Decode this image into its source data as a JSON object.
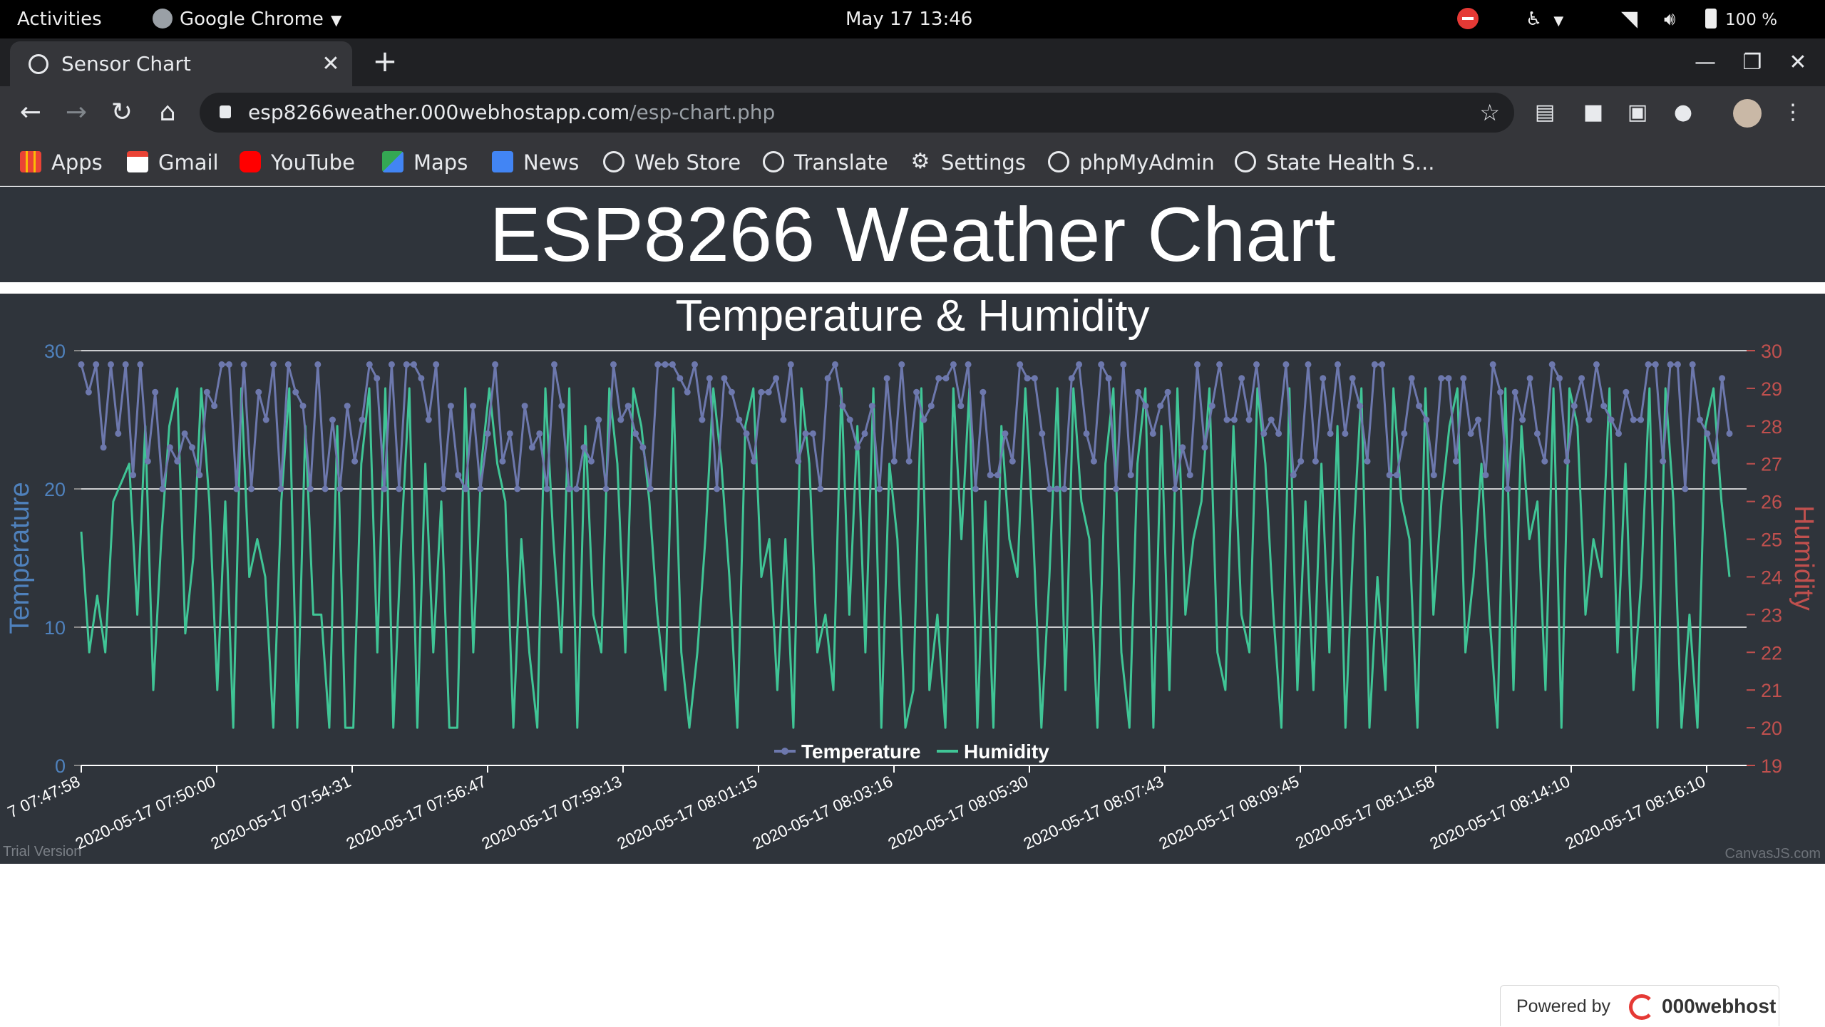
{
  "system_bar": {
    "activities": "Activities",
    "app": "Google Chrome",
    "clock": "May 17  13:46",
    "battery": "100 %"
  },
  "browser": {
    "tab_title": "Sensor Chart",
    "url_host": "esp8266weather.000webhostapp.com",
    "url_path": "/esp-chart.php",
    "bookmarks": [
      "Apps",
      "Gmail",
      "YouTube",
      "Maps",
      "News",
      "Web Store",
      "Translate",
      "Settings",
      "phpMyAdmin",
      "State Health S..."
    ]
  },
  "page": {
    "title": "ESP8266 Weather Chart",
    "powered_label": "Powered by",
    "powered_brand": "000webhost"
  },
  "chart_data": {
    "type": "line",
    "title": "Temperature & Humidity",
    "y_left": {
      "label": "Temperature",
      "range": [
        0,
        30
      ],
      "ticks": [
        0,
        10,
        20,
        30
      ],
      "color": "#4f81bc"
    },
    "y_right": {
      "label": "Humidity",
      "range": [
        19,
        30
      ],
      "ticks": [
        19,
        20,
        21,
        22,
        23,
        24,
        25,
        26,
        27,
        28,
        29,
        30
      ],
      "color": "#c0504e"
    },
    "x_tick_labels": [
      "7 07:47:58",
      "2020-05-17 07:50:00",
      "2020-05-17 07:54:31",
      "2020-05-17 07:56:47",
      "2020-05-17 07:59:13",
      "2020-05-17 08:01:15",
      "2020-05-17 08:03:16",
      "2020-05-17 08:05:30",
      "2020-05-17 08:07:43",
      "2020-05-17 08:09:45",
      "2020-05-17 08:11:58",
      "2020-05-17 08:14:10",
      "2020-05-17 08:16:10"
    ],
    "legend": [
      "Temperature",
      "Humidity"
    ],
    "legend_position": "bottom-center",
    "gridlines": true,
    "trial_note": "Trial Version",
    "credit": "CanvasJS.com",
    "series": [
      {
        "name": "Temperature",
        "color": "#6d78ad",
        "values": [
          29,
          27,
          29,
          23,
          29,
          24,
          29,
          21,
          29,
          22,
          27,
          20,
          23,
          22,
          24,
          23,
          21,
          27,
          26,
          29,
          29,
          20,
          29,
          20,
          27,
          25,
          29,
          20,
          29,
          27,
          26,
          20,
          29,
          20,
          25,
          20,
          26,
          22,
          25,
          29,
          28,
          20,
          29,
          20,
          29,
          29,
          28,
          25,
          29,
          20,
          26,
          21,
          20,
          26,
          20,
          24,
          29,
          22,
          24,
          20,
          26,
          23,
          24,
          20,
          29,
          26,
          20,
          20,
          23,
          22,
          25,
          20,
          29,
          25,
          26,
          24,
          23,
          20,
          29,
          29,
          29,
          28,
          27,
          29,
          25,
          28,
          20,
          28,
          27,
          25,
          24,
          22,
          27,
          27,
          28,
          25,
          29,
          22,
          24,
          24,
          20,
          28,
          29,
          26,
          25,
          23,
          24,
          26,
          20,
          28,
          22,
          29,
          22,
          27,
          25,
          26,
          28,
          28,
          29,
          26,
          29,
          20,
          27,
          21,
          21,
          24,
          22,
          29,
          28,
          28,
          24,
          20,
          20,
          20,
          28,
          29,
          24,
          22,
          29,
          28,
          20,
          29,
          21,
          27,
          26,
          24,
          26,
          27,
          20,
          23,
          21,
          29,
          23,
          26,
          29,
          25,
          25,
          28,
          25,
          29,
          24,
          25,
          24,
          29,
          21,
          22,
          29,
          22,
          28,
          24,
          29,
          24,
          28,
          26,
          22,
          29,
          29,
          21,
          21,
          24,
          28,
          26,
          25,
          21,
          28,
          28,
          22,
          28,
          24,
          25,
          21,
          29,
          27,
          20,
          27,
          25,
          28,
          24,
          22,
          29,
          28,
          22,
          26,
          28,
          25,
          29,
          26,
          25,
          24,
          27,
          25,
          25,
          29,
          29,
          22,
          29,
          29,
          20,
          29,
          25,
          24,
          22,
          28,
          24
        ]
      },
      {
        "name": "Humidity",
        "color": "#40c596",
        "values": [
          25.2,
          22,
          23.5,
          22,
          26,
          26.5,
          27,
          23,
          28,
          21,
          25,
          28,
          29,
          22.5,
          24.5,
          29,
          26,
          21,
          26,
          20,
          29,
          24,
          25,
          24,
          20,
          26,
          29,
          20,
          28,
          23,
          23,
          20,
          28,
          20,
          20,
          27,
          29,
          22,
          29,
          20,
          25,
          29,
          20,
          27,
          22,
          26,
          20,
          20,
          29,
          22,
          27,
          29,
          27,
          26,
          20,
          25,
          22,
          20,
          29,
          25,
          22,
          29,
          20,
          28,
          23,
          22,
          29,
          27,
          22,
          29,
          28,
          26,
          23,
          21,
          29,
          22,
          20,
          22,
          25,
          29,
          27,
          24,
          20,
          28,
          29,
          24,
          25,
          21,
          25,
          20,
          29,
          27,
          22,
          23,
          21,
          29,
          23,
          28,
          22,
          29,
          20,
          27,
          25,
          20,
          21,
          29,
          21,
          23,
          20,
          29,
          25,
          29,
          20,
          26,
          20,
          28,
          25,
          24,
          29,
          25,
          20,
          24,
          29,
          21,
          29,
          26,
          25,
          20,
          27,
          29,
          22,
          20,
          27,
          29,
          20,
          28,
          21,
          29,
          23,
          25,
          26,
          29,
          22,
          21,
          28,
          23,
          22,
          29,
          27,
          23,
          20,
          29,
          21,
          26,
          21,
          27,
          22,
          28,
          20,
          25,
          29,
          20,
          24,
          21,
          29,
          26,
          25,
          20,
          29,
          23,
          26,
          28,
          29,
          22,
          24,
          27,
          23,
          20,
          29,
          21,
          28,
          25,
          26,
          21,
          29,
          20,
          29,
          28,
          23,
          25,
          24,
          29,
          22,
          27,
          21,
          24,
          29,
          20,
          29,
          26,
          20,
          23,
          20,
          28,
          29,
          26,
          24
        ]
      }
    ]
  }
}
